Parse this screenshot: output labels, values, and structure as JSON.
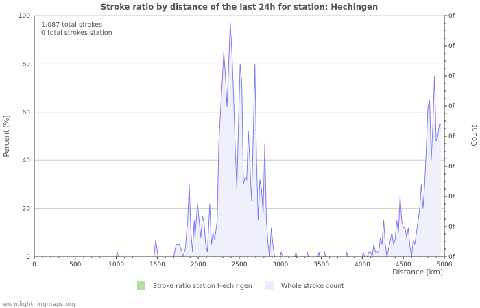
{
  "chart_data": {
    "type": "area",
    "title": "Stroke ratio by distance of the last 24h for station: Hechingen",
    "xlabel": "Distance   [km]",
    "ylabel": "Percent   [%]",
    "y2label": "Count",
    "xlim": [
      0,
      5000
    ],
    "ylim": [
      0,
      100
    ],
    "xticks": [
      0,
      500,
      1000,
      1500,
      2000,
      2500,
      3000,
      3500,
      4000,
      4500,
      5000
    ],
    "yticks": [
      0,
      20,
      40,
      60,
      80,
      100
    ],
    "y2ticks": [
      "0f",
      "0f",
      "0f",
      "0f",
      "0f",
      "0f",
      "0f",
      "0f",
      "0f"
    ],
    "grid": true,
    "annotations": [
      "1,087 total strokes",
      "0 total strokes station"
    ],
    "legend": {
      "placement": "bottom",
      "items": [
        {
          "label": "Stroke ratio station Hechingen",
          "color": "#b0e0a8"
        },
        {
          "label": "Whole stroke count",
          "color": "#ececfc"
        }
      ]
    },
    "colors": {
      "line": "#7c7cf0",
      "fill": "#f0f0fc",
      "grid": "#c8c8c8"
    },
    "series": [
      {
        "name": "Whole stroke count",
        "x": [
          0,
          1000,
          1010,
          1030,
          1460,
          1480,
          1510,
          1700,
          1730,
          1770,
          1800,
          1810,
          1840,
          1870,
          1890,
          1910,
          1930,
          1950,
          1960,
          1990,
          2010,
          2030,
          2050,
          2070,
          2090,
          2110,
          2140,
          2160,
          2180,
          2200,
          2230,
          2250,
          2270,
          2290,
          2310,
          2330,
          2350,
          2370,
          2390,
          2410,
          2430,
          2450,
          2470,
          2490,
          2510,
          2530,
          2550,
          2570,
          2590,
          2610,
          2630,
          2650,
          2670,
          2690,
          2710,
          2730,
          2750,
          2770,
          2790,
          2810,
          2830,
          2850,
          2870,
          2890,
          2910,
          2930,
          3000,
          3010,
          3030,
          3180,
          3190,
          3200,
          3320,
          3330,
          3340,
          3460,
          3470,
          3480,
          3530,
          3540,
          3550,
          3800,
          3810,
          3820,
          4000,
          4010,
          4030,
          4060,
          4080,
          4100,
          4120,
          4140,
          4160,
          4200,
          4220,
          4240,
          4260,
          4280,
          4300,
          4330,
          4360,
          4380,
          4400,
          4420,
          4440,
          4460,
          4480,
          4500,
          4520,
          4540,
          4560,
          4580,
          4600,
          4620,
          4640,
          4660,
          4680,
          4700,
          4720,
          4740,
          4760,
          4780,
          4800,
          4820,
          4840,
          4860,
          4880,
          4900,
          4920,
          4940,
          4960
        ],
        "values": [
          0,
          0,
          2,
          0,
          0,
          7,
          0,
          0,
          5,
          5,
          2,
          0,
          3,
          15,
          30,
          10,
          2,
          15,
          8,
          22,
          15,
          8,
          17,
          14,
          5,
          2,
          22,
          5,
          10,
          7,
          15,
          47,
          60,
          72,
          85,
          75,
          62,
          80,
          97,
          85,
          67,
          45,
          28,
          55,
          80,
          72,
          30,
          33,
          32,
          52,
          38,
          23,
          50,
          80,
          40,
          15,
          32,
          28,
          18,
          47,
          15,
          5,
          0,
          12,
          5,
          0,
          0,
          2,
          0,
          0,
          2,
          0,
          0,
          2,
          0,
          0,
          2,
          0,
          0,
          2,
          0,
          0,
          2,
          0,
          0,
          2,
          0,
          0,
          2,
          2,
          0,
          5,
          2,
          2,
          8,
          5,
          15,
          5,
          0,
          5,
          10,
          5,
          7,
          15,
          10,
          25,
          15,
          12,
          12,
          8,
          12,
          4,
          0,
          7,
          5,
          10,
          15,
          20,
          30,
          20,
          30,
          45,
          62,
          65,
          40,
          55,
          75,
          48,
          50,
          55,
          55
        ]
      }
    ]
  },
  "footer": "www.lightningmaps.org"
}
